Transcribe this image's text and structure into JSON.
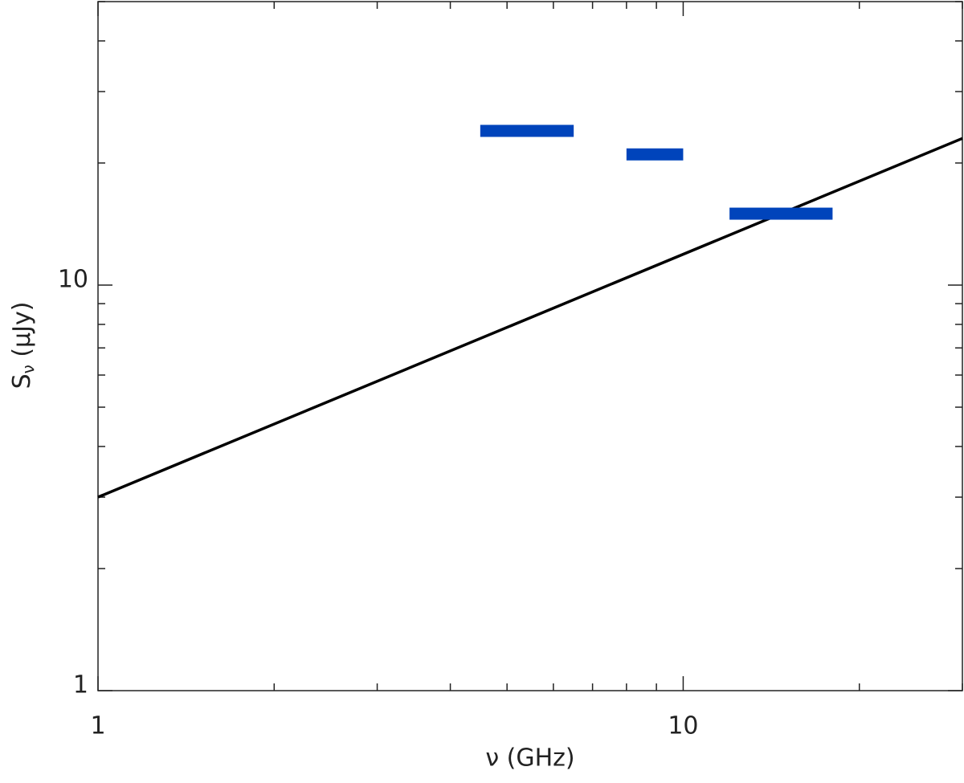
{
  "chart_data": {
    "type": "range-line",
    "xlabel": "ν (GHz)",
    "ylabel": [
      "S",
      "ν",
      " (μJy)"
    ],
    "log_x": true,
    "log_y": true,
    "xlim": [
      1,
      30
    ],
    "ylim": [
      1,
      50
    ],
    "xticks": [
      1,
      10
    ],
    "yticks": [
      1,
      10
    ],
    "xminorticks": [
      2,
      3,
      4,
      5,
      6,
      7,
      8,
      9,
      20,
      30
    ],
    "yminorticks": [
      2,
      3,
      4,
      5,
      6,
      7,
      8,
      9,
      20,
      30,
      40,
      50
    ],
    "line": {
      "color": "#000000",
      "x": [
        1,
        30
      ],
      "values": [
        3,
        23
      ]
    },
    "ranges": {
      "color": "#0044bb",
      "x_low": [
        4.5,
        8,
        12
      ],
      "x_high": [
        6.5,
        10,
        18
      ],
      "values": [
        24,
        21,
        15
      ]
    }
  }
}
